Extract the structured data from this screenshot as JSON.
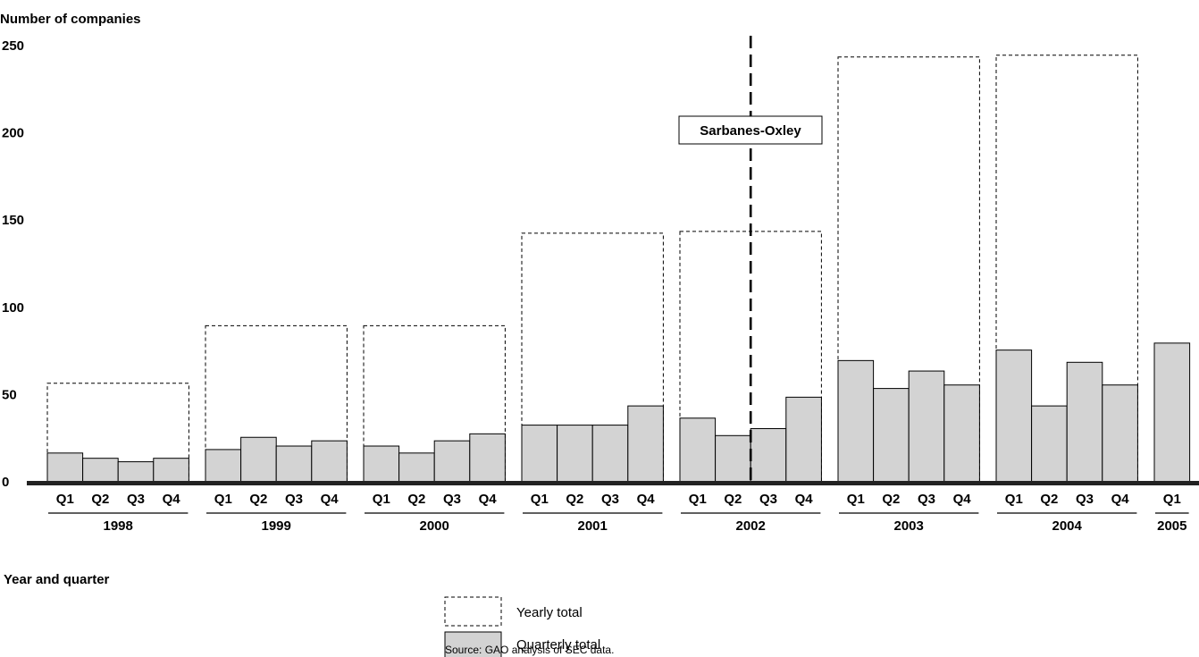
{
  "chart_data": {
    "type": "bar",
    "ylabel": "Number of companies",
    "xlabel": "Year and quarter",
    "ylim": [
      0,
      250
    ],
    "yticks": [
      0,
      50,
      100,
      150,
      200,
      250
    ],
    "grid": false,
    "legend_position": "bottom-center",
    "groups": [
      {
        "year": "1998",
        "quarters": [
          "Q1",
          "Q2",
          "Q3",
          "Q4"
        ],
        "quarterly": [
          17,
          14,
          12,
          14
        ],
        "yearly_total": 57
      },
      {
        "year": "1999",
        "quarters": [
          "Q1",
          "Q2",
          "Q3",
          "Q4"
        ],
        "quarterly": [
          19,
          26,
          21,
          24
        ],
        "yearly_total": 90
      },
      {
        "year": "2000",
        "quarters": [
          "Q1",
          "Q2",
          "Q3",
          "Q4"
        ],
        "quarterly": [
          21,
          17,
          24,
          28
        ],
        "yearly_total": 90
      },
      {
        "year": "2001",
        "quarters": [
          "Q1",
          "Q2",
          "Q3",
          "Q4"
        ],
        "quarterly": [
          33,
          33,
          33,
          44
        ],
        "yearly_total": 143
      },
      {
        "year": "2002",
        "quarters": [
          "Q1",
          "Q2",
          "Q3",
          "Q4"
        ],
        "quarterly": [
          37,
          27,
          31,
          49
        ],
        "yearly_total": 144
      },
      {
        "year": "2003",
        "quarters": [
          "Q1",
          "Q2",
          "Q3",
          "Q4"
        ],
        "quarterly": [
          70,
          54,
          64,
          56
        ],
        "yearly_total": 244
      },
      {
        "year": "2004",
        "quarters": [
          "Q1",
          "Q2",
          "Q3",
          "Q4"
        ],
        "quarterly": [
          76,
          44,
          69,
          56
        ],
        "yearly_total": 245
      },
      {
        "year": "2005",
        "quarters": [
          "Q1"
        ],
        "quarterly": [
          80
        ],
        "yearly_total": null
      }
    ],
    "annotation": {
      "label": "Sarbanes-Oxley",
      "position": "between 2002 Q2 and Q3"
    },
    "legend": [
      {
        "label": "Yearly total",
        "style": "dashed-outline"
      },
      {
        "label": "Quarterly total",
        "style": "gray-fill"
      }
    ],
    "source": "Source: GAO analysis of SEC data.",
    "colors": {
      "bar_fill": "#d3d3d3",
      "stroke": "#000000",
      "baseline": "#222222"
    }
  }
}
